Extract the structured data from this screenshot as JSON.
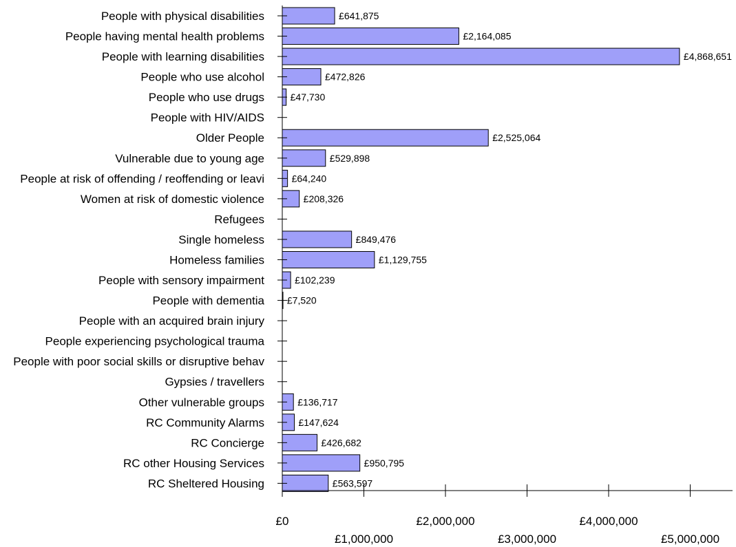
{
  "chart_data": {
    "type": "bar",
    "orientation": "horizontal",
    "bar_color": "#9f9ff9",
    "categories": [
      "People with physical disabilities",
      "People having mental health problems",
      "People with learning disabilities",
      "People who use alcohol",
      "People who use drugs",
      "People with HIV/AIDS",
      "Older People",
      "Vulnerable due to young age",
      "People at risk of offending / reoffending or leavi",
      "Women at risk of domestic violence",
      "Refugees",
      "Single homeless",
      "Homeless families",
      "People with sensory impairment",
      "People with dementia",
      "People with an acquired brain injury",
      "People experiencing psychological trauma",
      "People with poor social skills or disruptive behav",
      "Gypsies / travellers",
      "Other vulnerable groups",
      "RC Community Alarms",
      "RC Concierge",
      "RC other Housing Services",
      "RC Sheltered Housing"
    ],
    "values": [
      641875,
      2164085,
      4868651,
      472826,
      47730,
      0,
      2525064,
      529898,
      64240,
      208326,
      0,
      849476,
      1129755,
      102239,
      7520,
      0,
      0,
      0,
      0,
      136717,
      147624,
      426682,
      950795,
      563597
    ],
    "data_labels": [
      "£641,875",
      "£2,164,085",
      "£4,868,651",
      "£472,826",
      "£47,730",
      "",
      "£2,525,064",
      "£529,898",
      "£64,240",
      "£208,326",
      "",
      "£849,476",
      "£1,129,755",
      "£102,239",
      "£7,520",
      "",
      "",
      "",
      "",
      "£136,717",
      "£147,624",
      "£426,682",
      "£950,795",
      "£563,597"
    ],
    "x_ticks": [
      0,
      1000000,
      2000000,
      3000000,
      4000000,
      5000000
    ],
    "x_tick_labels": [
      "£0",
      "£1,000,000",
      "£2,000,000",
      "£3,000,000",
      "£4,000,000",
      "£5,000,000"
    ],
    "xlim": [
      0,
      5500000
    ],
    "title": "",
    "xlabel": "",
    "ylabel": "",
    "grid": false,
    "legend": "none"
  }
}
